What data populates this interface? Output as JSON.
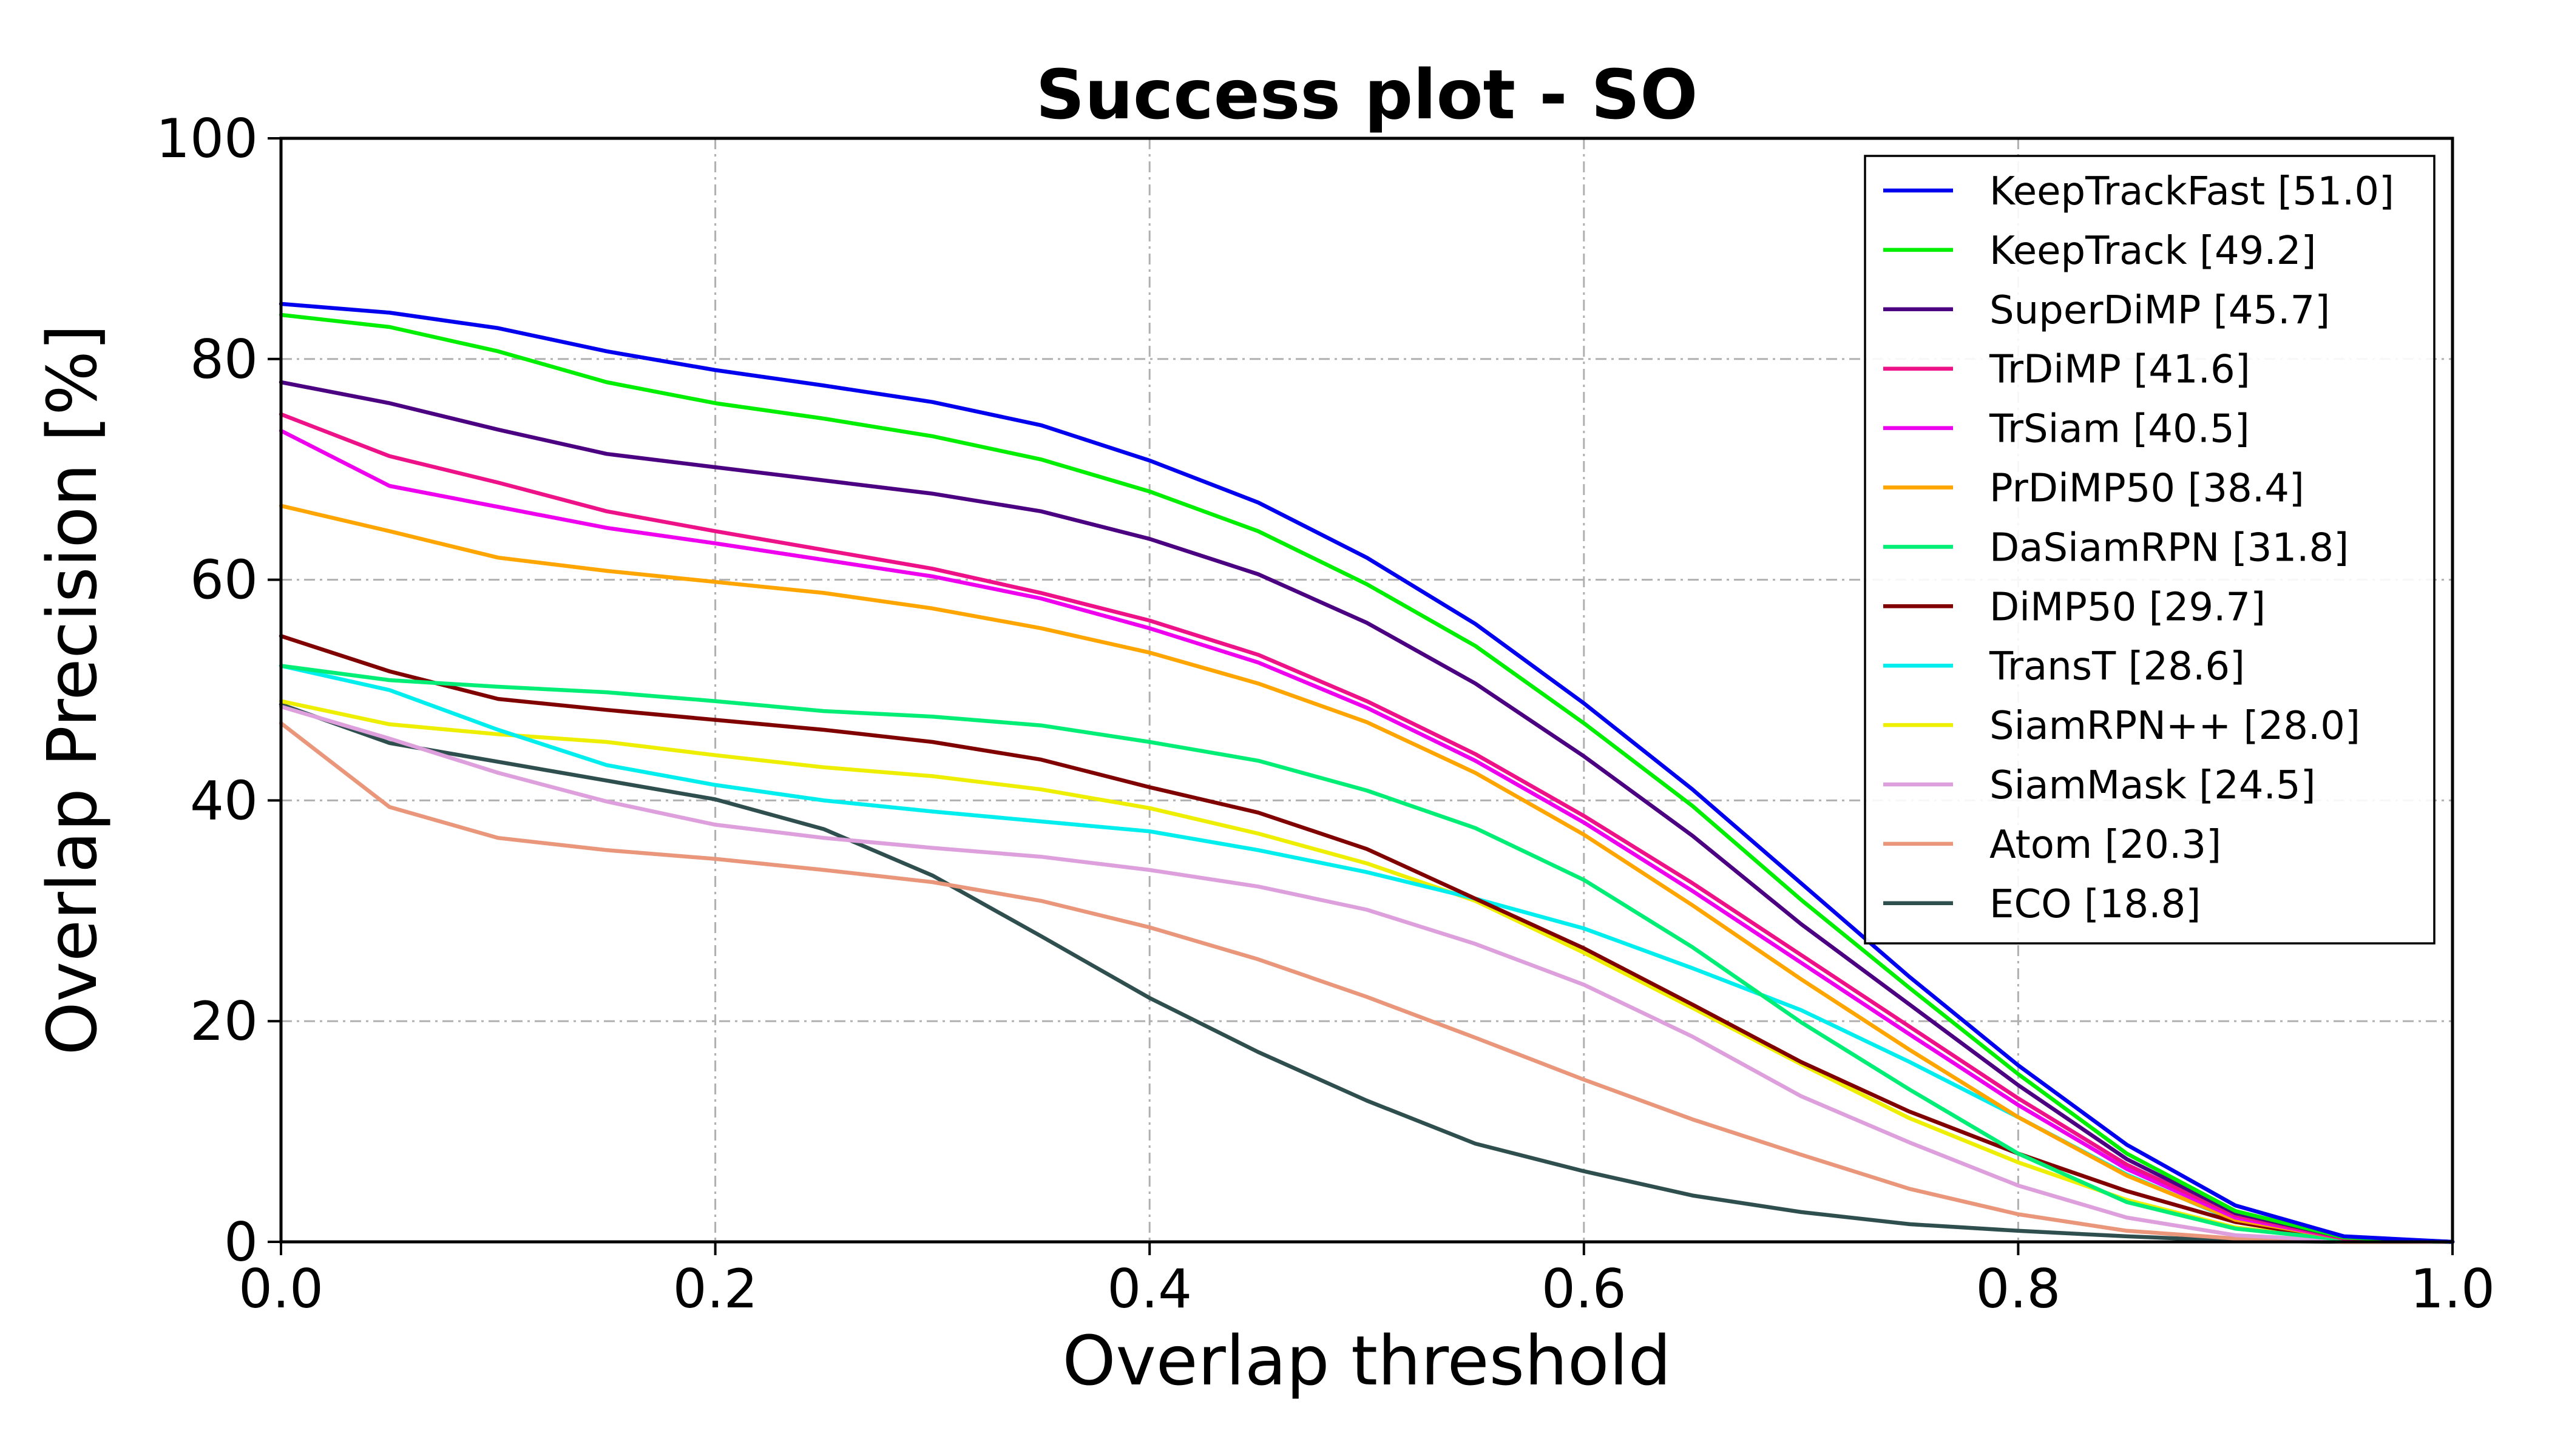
{
  "chart_data": {
    "type": "line",
    "title": "Success plot - SO",
    "xlabel": "Overlap threshold",
    "ylabel": "Overlap Precision [%]",
    "xlim": [
      0.0,
      1.0
    ],
    "ylim": [
      0,
      100
    ],
    "grid": true,
    "legend_position": "top-right",
    "xticks": [
      0.0,
      0.2,
      0.4,
      0.6,
      0.8,
      1.0
    ],
    "xtick_labels": [
      "0.0",
      "0.2",
      "0.4",
      "0.6",
      "0.8",
      "1.0"
    ],
    "yticks": [
      0,
      20,
      40,
      60,
      80,
      100
    ],
    "ytick_labels": [
      "0",
      "20",
      "40",
      "60",
      "80",
      "100"
    ],
    "x": [
      0.0,
      0.05,
      0.1,
      0.15,
      0.2,
      0.25,
      0.3,
      0.35,
      0.4,
      0.45,
      0.5,
      0.55,
      0.6,
      0.65,
      0.7,
      0.75,
      0.8,
      0.85,
      0.9,
      0.95,
      1.0
    ],
    "series": [
      {
        "name": "KeepTrackFast [51.0]",
        "color": "#0000ee",
        "values": [
          85.0,
          84.2,
          82.8,
          80.7,
          79.0,
          77.6,
          76.1,
          74.0,
          70.8,
          67.0,
          62.0,
          56.0,
          48.8,
          41.0,
          32.5,
          24.0,
          16.0,
          8.8,
          3.3,
          0.5,
          0.0
        ]
      },
      {
        "name": "KeepTrack [49.2]",
        "color": "#00ee00",
        "values": [
          84.0,
          82.9,
          80.7,
          77.9,
          76.0,
          74.6,
          73.0,
          70.9,
          68.0,
          64.4,
          59.6,
          54.0,
          47.0,
          39.5,
          31.0,
          23.0,
          15.2,
          8.0,
          2.8,
          0.4,
          0.0
        ]
      },
      {
        "name": "SuperDiMP [45.7]",
        "color": "#4b0082",
        "values": [
          77.9,
          76.0,
          73.6,
          71.4,
          70.2,
          69.0,
          67.8,
          66.2,
          63.7,
          60.5,
          56.1,
          50.6,
          44.0,
          36.8,
          28.8,
          21.5,
          14.2,
          7.5,
          2.6,
          0.4,
          0.0
        ]
      },
      {
        "name": "TrDiMP [41.6]",
        "color": "#ee1289",
        "values": [
          75.0,
          71.2,
          68.8,
          66.2,
          64.4,
          62.7,
          61.0,
          58.8,
          56.3,
          53.2,
          49.0,
          44.2,
          38.6,
          32.5,
          26.0,
          19.5,
          13.0,
          7.0,
          2.4,
          0.3,
          0.0
        ]
      },
      {
        "name": "TrSiam [40.5]",
        "color": "#ee00ee",
        "values": [
          73.5,
          68.5,
          66.6,
          64.7,
          63.3,
          61.8,
          60.3,
          58.3,
          55.6,
          52.5,
          48.4,
          43.6,
          38.0,
          31.8,
          25.3,
          18.8,
          12.4,
          6.6,
          2.2,
          0.3,
          0.0
        ]
      },
      {
        "name": "PrDiMP50 [38.4]",
        "color": "#ffa500",
        "values": [
          66.7,
          64.4,
          62.0,
          60.8,
          59.8,
          58.8,
          57.4,
          55.6,
          53.4,
          50.6,
          47.1,
          42.5,
          36.9,
          30.5,
          23.8,
          17.4,
          11.3,
          6.0,
          2.0,
          0.3,
          0.0
        ]
      },
      {
        "name": "DaSiamRPN [31.8]",
        "color": "#00ee76",
        "values": [
          52.2,
          50.9,
          50.3,
          49.8,
          49.0,
          48.1,
          47.6,
          46.8,
          45.3,
          43.6,
          40.9,
          37.5,
          32.8,
          26.7,
          19.9,
          13.8,
          8.0,
          3.6,
          1.2,
          0.2,
          0.0
        ]
      },
      {
        "name": "DiMP50 [29.7]",
        "color": "#800000",
        "values": [
          54.9,
          51.7,
          49.2,
          48.2,
          47.3,
          46.4,
          45.3,
          43.7,
          41.2,
          38.9,
          35.6,
          31.1,
          26.6,
          21.5,
          16.3,
          11.8,
          8.0,
          4.6,
          1.8,
          0.2,
          0.0
        ]
      },
      {
        "name": "TransT [28.6]",
        "color": "#00eeee",
        "values": [
          52.2,
          50.0,
          46.4,
          43.2,
          41.4,
          40.0,
          39.0,
          38.1,
          37.2,
          35.5,
          33.5,
          31.1,
          28.4,
          24.8,
          21.0,
          16.3,
          11.3,
          6.1,
          1.9,
          0.2,
          0.0
        ]
      },
      {
        "name": "SiamRPN++ [28.0]",
        "color": "#eeee00",
        "values": [
          49.0,
          46.9,
          46.0,
          45.3,
          44.1,
          43.0,
          42.2,
          41.0,
          39.3,
          37.0,
          34.3,
          30.9,
          26.2,
          21.2,
          16.1,
          11.2,
          7.2,
          3.8,
          1.3,
          0.2,
          0.0
        ]
      },
      {
        "name": "SiamMask [24.5]",
        "color": "#dda0dd",
        "values": [
          48.5,
          45.6,
          42.5,
          39.9,
          37.8,
          36.6,
          35.7,
          34.9,
          33.7,
          32.2,
          30.1,
          27.0,
          23.3,
          18.6,
          13.2,
          9.0,
          5.1,
          2.2,
          0.6,
          0.1,
          0.0
        ]
      },
      {
        "name": "Atom [20.3]",
        "color": "#e9967a",
        "values": [
          47.0,
          39.4,
          36.6,
          35.5,
          34.7,
          33.7,
          32.6,
          30.9,
          28.5,
          25.6,
          22.2,
          18.5,
          14.7,
          11.1,
          7.9,
          4.8,
          2.5,
          1.0,
          0.3,
          0.0,
          0.0
        ]
      },
      {
        "name": "ECO [18.8]",
        "color": "#2f4f4f",
        "values": [
          48.7,
          45.2,
          43.5,
          41.8,
          40.1,
          37.4,
          33.2,
          27.7,
          22.1,
          17.2,
          12.8,
          8.9,
          6.4,
          4.2,
          2.7,
          1.6,
          1.0,
          0.5,
          0.1,
          0.0,
          0.0
        ]
      }
    ]
  }
}
